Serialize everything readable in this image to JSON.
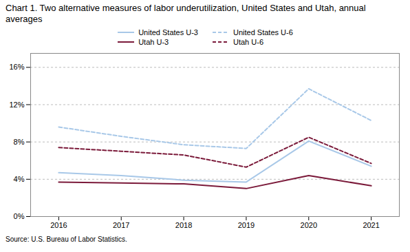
{
  "chart_data": {
    "type": "line",
    "title": "Chart 1. Two alternative measures of labor underutilization, United States and Utah, annual\naverages",
    "source": "Source: U.S. Bureau of Labor Statistics.",
    "x": [
      2016,
      2017,
      2018,
      2019,
      2020,
      2021
    ],
    "series": [
      {
        "name": "United States U-3",
        "color": "#a8c8e8",
        "line_style": "solid",
        "values": [
          4.7,
          4.4,
          3.9,
          3.7,
          8.1,
          5.4
        ]
      },
      {
        "name": "United States U-6",
        "color": "#a8c8e8",
        "line_style": "dashed",
        "values": [
          9.6,
          8.6,
          7.7,
          7.3,
          13.7,
          10.3
        ]
      },
      {
        "name": "Utah U-3",
        "color": "#7b1a3a",
        "line_style": "solid",
        "values": [
          3.7,
          3.6,
          3.5,
          3.0,
          4.4,
          3.3
        ]
      },
      {
        "name": "Utah U-6",
        "color": "#7b1a3a",
        "line_style": "dashed",
        "values": [
          7.4,
          7.0,
          6.6,
          5.3,
          8.5,
          5.7
        ]
      }
    ],
    "xlim": [
      2015.55,
      2021.45
    ],
    "xticks": [
      2016,
      2017,
      2018,
      2019,
      2020,
      2021
    ],
    "ylim": [
      0,
      17.5
    ],
    "yticks": [
      {
        "value": 0,
        "label": "0%"
      },
      {
        "value": 4,
        "label": "4%"
      },
      {
        "value": 8,
        "label": "8%"
      },
      {
        "value": 12,
        "label": "12%"
      },
      {
        "value": 16,
        "label": "16%"
      }
    ],
    "grid": "y",
    "legend": "top"
  }
}
